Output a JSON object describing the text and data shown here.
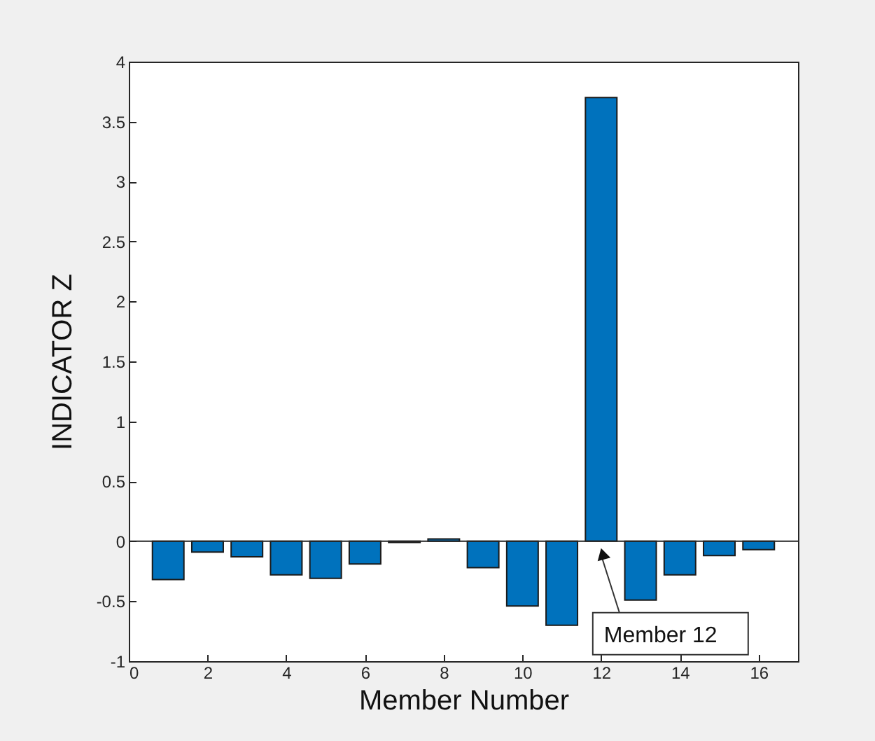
{
  "chart_data": {
    "type": "bar",
    "xlabel": "Member Number",
    "ylabel": "INDICATOR Z",
    "x": [
      1,
      2,
      3,
      4,
      5,
      6,
      7,
      8,
      9,
      10,
      11,
      12,
      13,
      14,
      15,
      16
    ],
    "values": [
      -0.32,
      -0.09,
      -0.13,
      -0.28,
      -0.31,
      -0.19,
      -0.01,
      0.02,
      -0.22,
      -0.54,
      -0.7,
      3.7,
      -0.49,
      -0.28,
      -0.12,
      -0.07
    ],
    "color": "#0072bd",
    "xlim": [
      0,
      17
    ],
    "xticks": [
      0,
      2,
      4,
      6,
      8,
      10,
      12,
      14,
      16
    ],
    "ylim": [
      -1,
      4
    ],
    "yticks": [
      -1,
      -0.5,
      0,
      0.5,
      1,
      1.5,
      2,
      2.5,
      3,
      3.5,
      4
    ],
    "annotations": [
      "Member 12"
    ]
  }
}
